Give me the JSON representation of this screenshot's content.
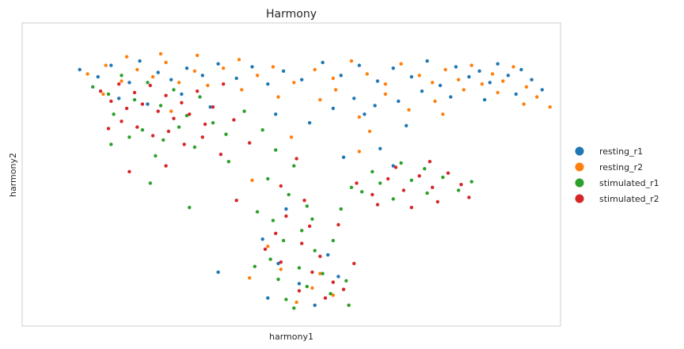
{
  "chart_data": {
    "type": "scatter",
    "title": "Harmony",
    "xlabel": "harmony1",
    "ylabel": "harmony2",
    "xlim": [
      -10,
      10
    ],
    "ylim": [
      -10,
      10
    ],
    "ticks": "none",
    "grid": false,
    "legend_position": "right",
    "colors": {
      "resting_r1": "#1f77b4",
      "resting_r2": "#ff7f0e",
      "stimulated_r1": "#2ca02c",
      "stimulated_r2": "#d62728"
    },
    "series": [
      {
        "name": "resting_r1",
        "color": "#1f77b4",
        "points": [
          [
            -8.1,
            7.3
          ],
          [
            -7.4,
            6.8
          ],
          [
            -6.9,
            7.6
          ],
          [
            -6.2,
            6.4
          ],
          [
            -5.8,
            7.9
          ],
          [
            -5.1,
            7.1
          ],
          [
            -4.6,
            6.6
          ],
          [
            -4.0,
            7.4
          ],
          [
            -3.4,
            6.9
          ],
          [
            -2.8,
            7.7
          ],
          [
            -2.1,
            6.7
          ],
          [
            -1.5,
            7.5
          ],
          [
            -0.9,
            6.3
          ],
          [
            -0.3,
            7.2
          ],
          [
            0.4,
            6.6
          ],
          [
            1.2,
            7.8
          ],
          [
            1.9,
            6.9
          ],
          [
            2.6,
            7.6
          ],
          [
            3.3,
            6.5
          ],
          [
            3.9,
            7.4
          ],
          [
            4.6,
            6.8
          ],
          [
            5.2,
            7.9
          ],
          [
            5.7,
            6.2
          ],
          [
            6.3,
            7.5
          ],
          [
            6.8,
            6.8
          ],
          [
            7.2,
            7.2
          ],
          [
            7.6,
            6.4
          ],
          [
            7.9,
            7.7
          ],
          [
            8.3,
            6.9
          ],
          [
            8.8,
            7.3
          ],
          [
            9.2,
            6.6
          ],
          [
            9.6,
            5.9
          ],
          [
            8.6,
            5.6
          ],
          [
            7.4,
            5.2
          ],
          [
            6.1,
            5.4
          ],
          [
            5.0,
            5.8
          ],
          [
            4.1,
            5.1
          ],
          [
            3.2,
            4.8
          ],
          [
            2.4,
            5.3
          ],
          [
            1.6,
            4.6
          ],
          [
            -6.6,
            5.3
          ],
          [
            -5.5,
            4.9
          ],
          [
            -4.2,
            5.6
          ],
          [
            -3.1,
            4.7
          ],
          [
            -0.6,
            4.2
          ],
          [
            0.7,
            3.6
          ],
          [
            2.8,
            4.2
          ],
          [
            4.4,
            3.4
          ],
          [
            3.4,
            1.8
          ],
          [
            2.0,
            1.2
          ],
          [
            3.9,
            0.6
          ],
          [
            -0.2,
            -2.4
          ],
          [
            -1.1,
            -4.5
          ],
          [
            -0.5,
            -6.2
          ],
          [
            0.3,
            -7.6
          ],
          [
            -0.9,
            -8.6
          ],
          [
            1.4,
            -5.6
          ],
          [
            1.8,
            -7.1
          ],
          [
            -2.8,
            -6.8
          ],
          [
            0.9,
            -9.1
          ]
        ]
      },
      {
        "name": "resting_r2",
        "color": "#ff7f0e",
        "points": [
          [
            -7.8,
            7.0
          ],
          [
            -7.1,
            7.6
          ],
          [
            -6.5,
            6.5
          ],
          [
            -5.9,
            7.3
          ],
          [
            -5.3,
            6.8
          ],
          [
            -4.8,
            7.8
          ],
          [
            -4.3,
            6.4
          ],
          [
            -3.7,
            7.2
          ],
          [
            -3.2,
            6.2
          ],
          [
            -2.6,
            7.4
          ],
          [
            -2.0,
            8.0
          ],
          [
            -1.3,
            6.9
          ],
          [
            -0.7,
            7.5
          ],
          [
            0.1,
            6.4
          ],
          [
            0.9,
            7.3
          ],
          [
            1.6,
            6.7
          ],
          [
            2.3,
            7.9
          ],
          [
            2.9,
            7.0
          ],
          [
            3.6,
            6.3
          ],
          [
            4.2,
            7.7
          ],
          [
            4.9,
            6.9
          ],
          [
            5.4,
            6.4
          ],
          [
            5.9,
            7.3
          ],
          [
            6.4,
            6.6
          ],
          [
            6.9,
            7.6
          ],
          [
            7.3,
            6.3
          ],
          [
            7.7,
            7.0
          ],
          [
            8.1,
            6.5
          ],
          [
            8.5,
            7.5
          ],
          [
            9.0,
            6.1
          ],
          [
            9.4,
            5.4
          ],
          [
            9.9,
            4.7
          ],
          [
            8.9,
            4.9
          ],
          [
            7.9,
            5.7
          ],
          [
            6.6,
            5.9
          ],
          [
            5.5,
            5.1
          ],
          [
            4.5,
            4.5
          ],
          [
            3.6,
            5.6
          ],
          [
            2.6,
            4.0
          ],
          [
            1.7,
            5.9
          ],
          [
            -5.0,
            8.4
          ],
          [
            -6.3,
            8.2
          ],
          [
            -3.6,
            8.3
          ],
          [
            -1.9,
            5.9
          ],
          [
            -0.5,
            5.4
          ],
          [
            1.1,
            5.2
          ],
          [
            -7.2,
            5.6
          ],
          [
            -4.6,
            4.4
          ],
          [
            0.0,
            2.6
          ],
          [
            -1.5,
            -0.4
          ],
          [
            2.6,
            1.6
          ],
          [
            -0.4,
            -6.6
          ],
          [
            0.8,
            -7.9
          ],
          [
            1.6,
            -8.4
          ],
          [
            -1.6,
            -7.2
          ],
          [
            0.2,
            -8.9
          ],
          [
            1.1,
            -6.9
          ],
          [
            -0.9,
            -5.0
          ],
          [
            3.0,
            3.0
          ],
          [
            5.8,
            4.2
          ]
        ]
      },
      {
        "name": "stimulated_r1",
        "color": "#2ca02c",
        "points": [
          [
            -7.6,
            6.1
          ],
          [
            -7.0,
            5.6
          ],
          [
            -6.5,
            6.9
          ],
          [
            -6.0,
            5.2
          ],
          [
            -5.5,
            6.4
          ],
          [
            -5.0,
            4.8
          ],
          [
            -4.5,
            5.9
          ],
          [
            -4.0,
            4.1
          ],
          [
            -3.5,
            5.4
          ],
          [
            -3.0,
            3.6
          ],
          [
            -6.8,
            4.2
          ],
          [
            -5.7,
            3.1
          ],
          [
            -4.9,
            2.4
          ],
          [
            -4.3,
            3.3
          ],
          [
            -3.7,
            1.9
          ],
          [
            -6.2,
            2.6
          ],
          [
            -5.2,
            1.3
          ],
          [
            -2.5,
            2.8
          ],
          [
            -1.8,
            4.4
          ],
          [
            -1.1,
            3.1
          ],
          [
            -0.6,
            1.7
          ],
          [
            0.1,
            0.6
          ],
          [
            -0.9,
            -0.3
          ],
          [
            -0.1,
            -1.4
          ],
          [
            0.6,
            -2.2
          ],
          [
            -0.7,
            -3.2
          ],
          [
            0.4,
            -3.9
          ],
          [
            -0.3,
            -4.6
          ],
          [
            0.9,
            -5.3
          ],
          [
            -0.8,
            -5.9
          ],
          [
            0.3,
            -6.5
          ],
          [
            1.2,
            -6.9
          ],
          [
            -0.5,
            -7.3
          ],
          [
            0.6,
            -7.8
          ],
          [
            1.5,
            -8.3
          ],
          [
            -0.2,
            -8.7
          ],
          [
            2.1,
            -7.4
          ],
          [
            1.9,
            -2.4
          ],
          [
            2.7,
            -1.2
          ],
          [
            3.4,
            -0.6
          ],
          [
            3.9,
            -1.7
          ],
          [
            4.6,
            -0.4
          ],
          [
            5.2,
            -1.3
          ],
          [
            5.8,
            -0.2
          ],
          [
            6.4,
            -1.1
          ],
          [
            4.2,
            0.8
          ],
          [
            5.1,
            0.4
          ],
          [
            2.3,
            -0.9
          ],
          [
            -3.9,
            -2.3
          ],
          [
            -5.4,
            -0.6
          ],
          [
            -6.9,
            2.1
          ],
          [
            -2.4,
            0.9
          ],
          [
            -1.3,
            -2.6
          ],
          [
            0.8,
            -3.1
          ],
          [
            1.6,
            -4.6
          ],
          [
            -1.4,
            -6.4
          ],
          [
            0.1,
            -9.3
          ],
          [
            2.2,
            -9.1
          ],
          [
            6.9,
            -0.5
          ],
          [
            3.1,
            0.2
          ]
        ]
      },
      {
        "name": "stimulated_r2",
        "color": "#d62728",
        "points": [
          [
            -7.3,
            5.8
          ],
          [
            -6.9,
            5.1
          ],
          [
            -6.6,
            6.3
          ],
          [
            -6.3,
            4.6
          ],
          [
            -6.0,
            5.7
          ],
          [
            -5.7,
            4.9
          ],
          [
            -5.4,
            6.2
          ],
          [
            -5.1,
            4.4
          ],
          [
            -4.8,
            5.5
          ],
          [
            -4.5,
            3.9
          ],
          [
            -4.2,
            5.0
          ],
          [
            -3.9,
            4.2
          ],
          [
            -3.6,
            5.8
          ],
          [
            -3.3,
            3.5
          ],
          [
            -3.0,
            4.7
          ],
          [
            -2.6,
            6.3
          ],
          [
            -2.2,
            3.8
          ],
          [
            -6.5,
            3.7
          ],
          [
            -5.9,
            3.3
          ],
          [
            -5.3,
            2.7
          ],
          [
            -4.7,
            3.0
          ],
          [
            -4.1,
            2.1
          ],
          [
            -3.4,
            2.6
          ],
          [
            -7.0,
            3.2
          ],
          [
            -2.7,
            1.4
          ],
          [
            -1.6,
            2.2
          ],
          [
            0.2,
            1.1
          ],
          [
            -0.4,
            -0.8
          ],
          [
            0.5,
            -1.8
          ],
          [
            -0.2,
            -2.9
          ],
          [
            0.7,
            -3.6
          ],
          [
            -0.6,
            -4.1
          ],
          [
            0.4,
            -4.8
          ],
          [
            1.1,
            -5.7
          ],
          [
            -0.4,
            -6.1
          ],
          [
            0.8,
            -6.8
          ],
          [
            1.6,
            -7.5
          ],
          [
            0.3,
            -8.1
          ],
          [
            1.3,
            -8.6
          ],
          [
            2.0,
            -8.0
          ],
          [
            2.5,
            -0.6
          ],
          [
            3.1,
            -1.4
          ],
          [
            3.7,
            -0.3
          ],
          [
            4.3,
            -1.1
          ],
          [
            4.9,
            -0.1
          ],
          [
            5.4,
            -0.9
          ],
          [
            6.0,
            0.1
          ],
          [
            6.5,
            -0.7
          ],
          [
            3.3,
            -2.1
          ],
          [
            4.6,
            -2.3
          ],
          [
            5.6,
            -1.9
          ],
          [
            4.0,
            0.5
          ],
          [
            5.3,
            0.9
          ],
          [
            -4.8,
            0.6
          ],
          [
            -6.2,
            0.2
          ],
          [
            -2.1,
            -1.8
          ],
          [
            -1.0,
            -5.2
          ],
          [
            2.4,
            -6.2
          ],
          [
            1.8,
            -3.5
          ],
          [
            6.8,
            -1.6
          ]
        ]
      }
    ]
  }
}
